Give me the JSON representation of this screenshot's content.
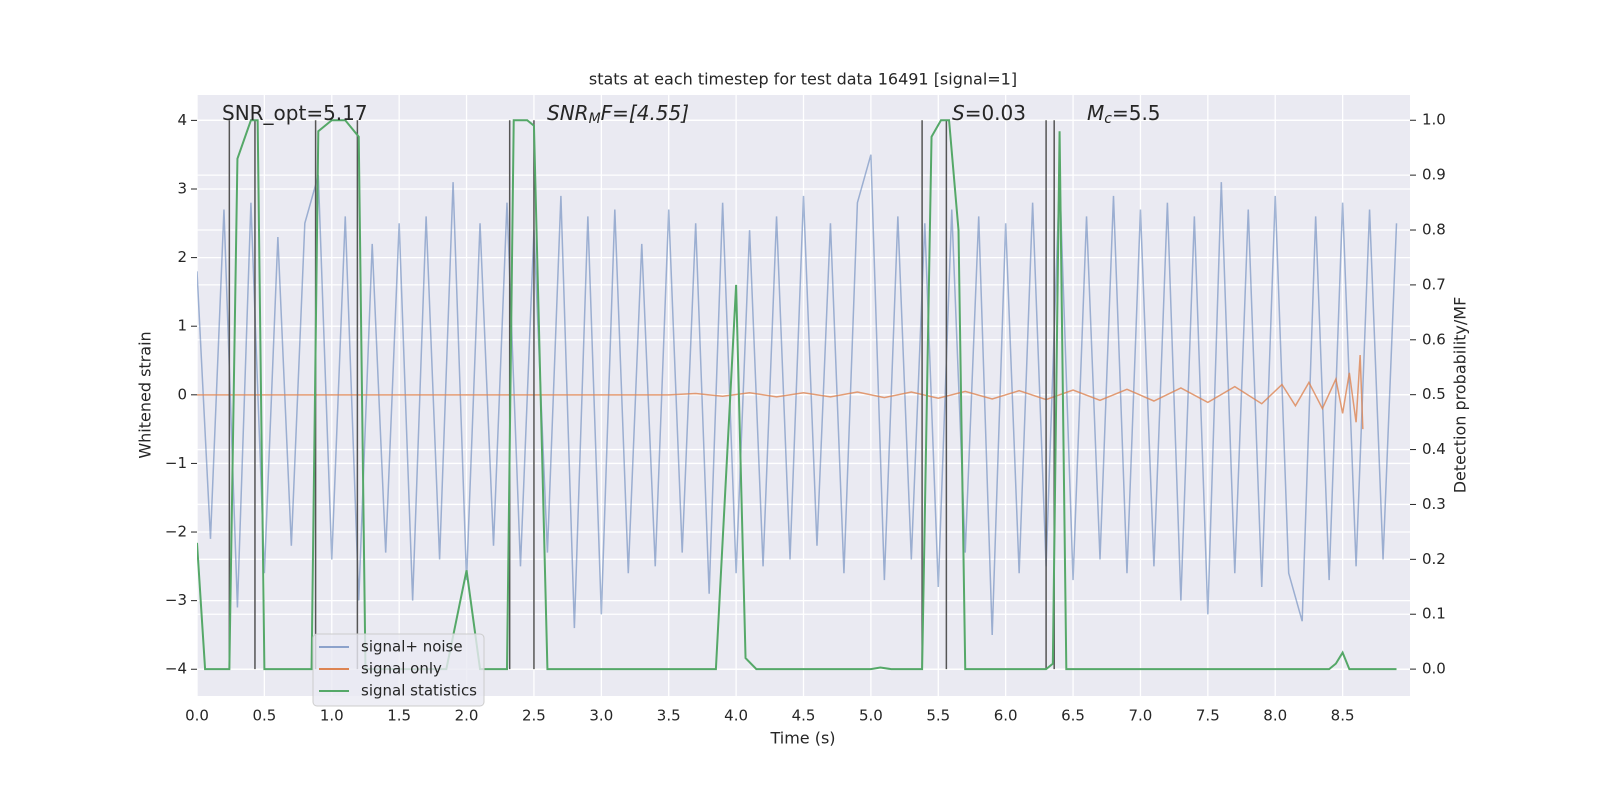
{
  "chart_data": {
    "type": "line",
    "title": "stats at each timestep for test data 16491 [signal=1]",
    "xlabel": "Time (s)",
    "ylabel": "Whitened strain",
    "y2label": "Detection probability/MF",
    "annotations": [
      {
        "text": "SNR_opt=5.17"
      },
      {
        "base": "SNR",
        "sub": "M",
        "tail": "F=[4.55]"
      },
      {
        "base": "S",
        "tail": "=0.03"
      },
      {
        "base": "M",
        "sub": "c",
        "tail": "=5.5"
      }
    ],
    "xlim": [
      0,
      9.0
    ],
    "ylim": [
      -4.39,
      4.37
    ],
    "y2lim": [
      -0.049,
      1.046
    ],
    "xticks": [
      {
        "value": 0,
        "label": "0.0"
      },
      {
        "value": 0.5,
        "label": "0.5"
      },
      {
        "value": 1,
        "label": "1.0"
      },
      {
        "value": 1.5,
        "label": "1.5"
      },
      {
        "value": 2,
        "label": "2.0"
      },
      {
        "value": 2.5,
        "label": "2.5"
      },
      {
        "value": 3,
        "label": "3.0"
      },
      {
        "value": 3.5,
        "label": "3.5"
      },
      {
        "value": 4,
        "label": "4.0"
      },
      {
        "value": 4.5,
        "label": "4.5"
      },
      {
        "value": 5,
        "label": "5.0"
      },
      {
        "value": 5.5,
        "label": "5.5"
      },
      {
        "value": 6,
        "label": "6.0"
      },
      {
        "value": 6.5,
        "label": "6.5"
      },
      {
        "value": 7,
        "label": "7.0"
      },
      {
        "value": 7.5,
        "label": "7.5"
      },
      {
        "value": 8,
        "label": "8.0"
      },
      {
        "value": 8.5,
        "label": "8.5"
      }
    ],
    "yticks": [
      {
        "value": -4,
        "label": "−4"
      },
      {
        "value": -3,
        "label": "−3"
      },
      {
        "value": -2,
        "label": "−2"
      },
      {
        "value": -1,
        "label": "−1"
      },
      0,
      1,
      2,
      3,
      4
    ],
    "y2ticks": [
      {
        "value": 0,
        "label": "0.0"
      },
      {
        "value": 0.1,
        "label": "0.1"
      },
      {
        "value": 0.2,
        "label": "0.2"
      },
      {
        "value": 0.3,
        "label": "0.3"
      },
      {
        "value": 0.4,
        "label": "0.4"
      },
      {
        "value": 0.5,
        "label": "0.5"
      },
      {
        "value": 0.6,
        "label": "0.6"
      },
      {
        "value": 0.7,
        "label": "0.7"
      },
      {
        "value": 0.8,
        "label": "0.8"
      },
      {
        "value": 0.9,
        "label": "0.9"
      },
      {
        "value": 1,
        "label": "1.0"
      }
    ],
    "grid": true,
    "legend": "lower left",
    "vlines": [
      0.24,
      0.43,
      0.88,
      1.19,
      2.32,
      2.5,
      5.38,
      5.56,
      6.3,
      6.36
    ],
    "vlines_color": "#555555",
    "series": [
      {
        "name": "signal+ noise",
        "color": "#4c72b0",
        "x": [
          0,
          0.1,
          0.2,
          0.3,
          0.4,
          0.5,
          0.6,
          0.7,
          0.8,
          0.9,
          1,
          1.1,
          1.2,
          1.3,
          1.4,
          1.5,
          1.6,
          1.7,
          1.8,
          1.9,
          2,
          2.1,
          2.2,
          2.3,
          2.4,
          2.5,
          2.6,
          2.7,
          2.8,
          2.9,
          3,
          3.1,
          3.2,
          3.3,
          3.4,
          3.5,
          3.6,
          3.7,
          3.8,
          3.9,
          4,
          4.1,
          4.2,
          4.3,
          4.4,
          4.5,
          4.6,
          4.7,
          4.8,
          4.9,
          5,
          5.1,
          5.2,
          5.3,
          5.4,
          5.5,
          5.6,
          5.7,
          5.8,
          5.9,
          6,
          6.1,
          6.2,
          6.3,
          6.4,
          6.5,
          6.6,
          6.7,
          6.8,
          6.9,
          7,
          7.1,
          7.2,
          7.3,
          7.4,
          7.5,
          7.6,
          7.7,
          7.8,
          7.9,
          8,
          8.1,
          8.2,
          8.3,
          8.4,
          8.5,
          8.6,
          8.7,
          8.8,
          8.9
        ],
        "values": [
          1.8,
          -2.1,
          2.7,
          -3.1,
          2.8,
          -2.6,
          2.3,
          -2.2,
          2.5,
          3.2,
          -2.4,
          2.6,
          -3.0,
          2.2,
          -2.3,
          2.5,
          -3.0,
          2.6,
          -2.4,
          3.1,
          -2.7,
          2.5,
          -2.2,
          2.8,
          -2.5,
          2.4,
          -2.3,
          2.9,
          -3.4,
          2.6,
          -3.2,
          2.7,
          -2.6,
          2.2,
          -2.5,
          2.7,
          -2.3,
          2.5,
          -2.9,
          2.8,
          -2.6,
          2.4,
          -2.5,
          2.6,
          -2.4,
          2.9,
          -2.2,
          2.5,
          -2.6,
          2.8,
          3.5,
          -2.7,
          2.6,
          -2.4,
          2.5,
          -2.8,
          2.7,
          -2.3,
          2.6,
          -3.5,
          2.5,
          -2.6,
          2.8,
          -2.5,
          3.2,
          -2.7,
          2.6,
          -2.4,
          2.9,
          -2.6,
          2.7,
          -2.5,
          2.8,
          -3.0,
          2.6,
          -3.2,
          3.1,
          -2.6,
          2.7,
          -2.8,
          2.9,
          -2.6,
          -3.3,
          2.6,
          -2.7,
          2.8,
          -2.5,
          2.7,
          -2.4,
          2.5
        ]
      },
      {
        "name": "signal only",
        "color": "#dd8452",
        "x": [
          0,
          3.5,
          3.7,
          3.9,
          4.1,
          4.3,
          4.5,
          4.7,
          4.9,
          5.1,
          5.3,
          5.5,
          5.7,
          5.9,
          6.1,
          6.3,
          6.5,
          6.7,
          6.9,
          7.1,
          7.3,
          7.5,
          7.7,
          7.9,
          8.05,
          8.15,
          8.25,
          8.35,
          8.45,
          8.5,
          8.55,
          8.6,
          8.63,
          8.65
        ],
        "values": [
          0,
          0,
          0.02,
          -0.02,
          0.03,
          -0.03,
          0.03,
          -0.03,
          0.04,
          -0.04,
          0.04,
          -0.05,
          0.05,
          -0.06,
          0.06,
          -0.07,
          0.07,
          -0.08,
          0.08,
          -0.09,
          0.1,
          -0.11,
          0.12,
          -0.13,
          0.15,
          -0.16,
          0.18,
          -0.2,
          0.23,
          -0.27,
          0.32,
          -0.4,
          0.58,
          -0.5
        ]
      },
      {
        "name": "signal statistics",
        "color": "#55a868",
        "axis": "y2",
        "x": [
          0,
          0.06,
          0.24,
          0.3,
          0.4,
          0.45,
          0.5,
          0.85,
          0.9,
          1.0,
          1.1,
          1.2,
          1.25,
          1.85,
          2.0,
          2.1,
          2.3,
          2.35,
          2.45,
          2.5,
          2.6,
          3.85,
          4.0,
          4.07,
          4.15,
          5.0,
          5.07,
          5.15,
          5.38,
          5.45,
          5.52,
          5.58,
          5.65,
          5.7,
          6.3,
          6.35,
          6.4,
          6.45,
          8.4,
          8.45,
          8.5,
          8.55,
          8.9
        ],
        "values": [
          0.23,
          0,
          0,
          0.93,
          1.0,
          1.0,
          0,
          0,
          0.98,
          1.0,
          1.0,
          0.97,
          0,
          0,
          0.18,
          0,
          0,
          1.0,
          1.0,
          0.99,
          0,
          0,
          0.7,
          0.02,
          0,
          0,
          0.003,
          0,
          0,
          0.97,
          1.0,
          1.0,
          0.8,
          0,
          0,
          0.01,
          0.98,
          0,
          0,
          0.01,
          0.03,
          0,
          0
        ]
      }
    ]
  }
}
